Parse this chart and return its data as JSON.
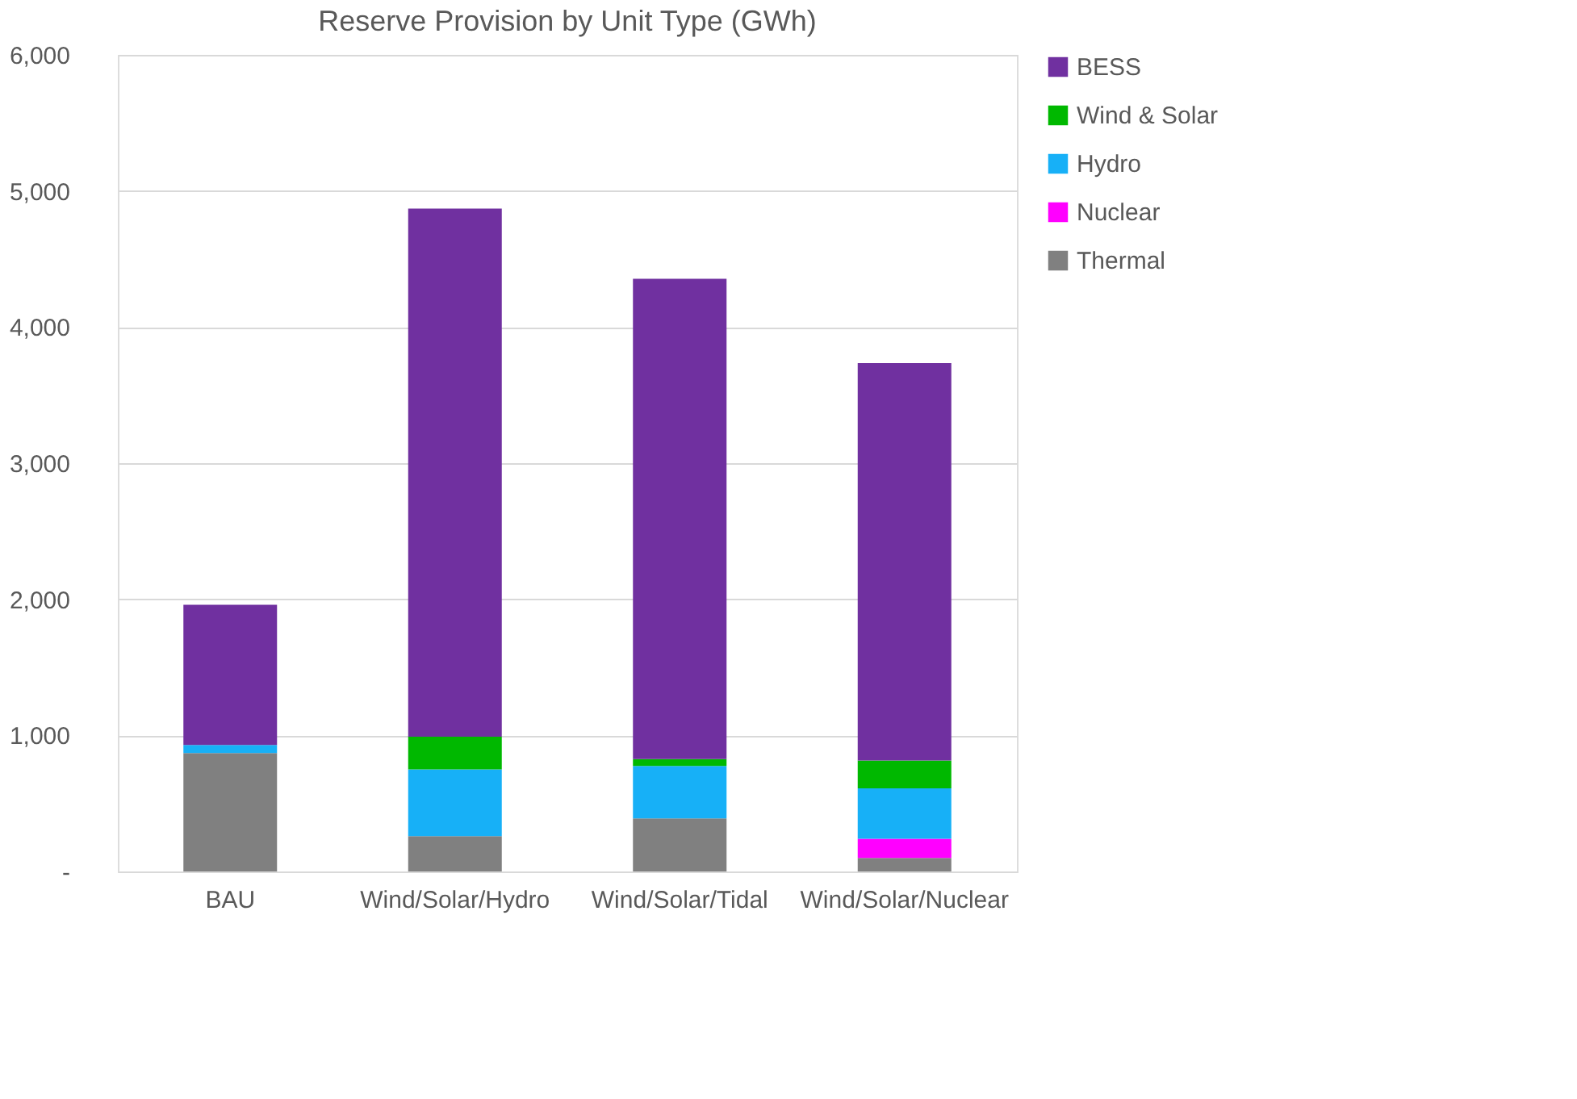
{
  "chart_data": {
    "type": "bar",
    "title": "Reserve Provision by Unit Type (GWh)",
    "stacked": true,
    "categories": [
      "BAU",
      "Wind/Solar/Hydro",
      "Wind/Solar/Tidal",
      "Wind/Solar/Nuclear"
    ],
    "series": [
      {
        "name": "Thermal",
        "color": "#808080",
        "values": [
          870,
          260,
          390,
          100
        ]
      },
      {
        "name": "Nuclear",
        "color": "#ff00ff",
        "values": [
          0,
          0,
          0,
          140
        ]
      },
      {
        "name": "Hydro",
        "color": "#17b0f7",
        "values": [
          60,
          490,
          385,
          370
        ]
      },
      {
        "name": "Wind & Solar",
        "color": "#00b800",
        "values": [
          0,
          240,
          50,
          205
        ]
      },
      {
        "name": "BESS",
        "color": "#7030a0",
        "values": [
          1030,
          3880,
          3530,
          2920
        ]
      }
    ],
    "ylim": [
      0,
      6000
    ],
    "yticks": [
      {
        "value": 0,
        "label": "-"
      },
      {
        "value": 1000,
        "label": "1,000"
      },
      {
        "value": 2000,
        "label": "2,000"
      },
      {
        "value": 3000,
        "label": "3,000"
      },
      {
        "value": 4000,
        "label": "4,000"
      },
      {
        "value": 5000,
        "label": "5,000"
      },
      {
        "value": 6000,
        "label": "6,000"
      }
    ],
    "grid": "y",
    "legend": "right"
  }
}
